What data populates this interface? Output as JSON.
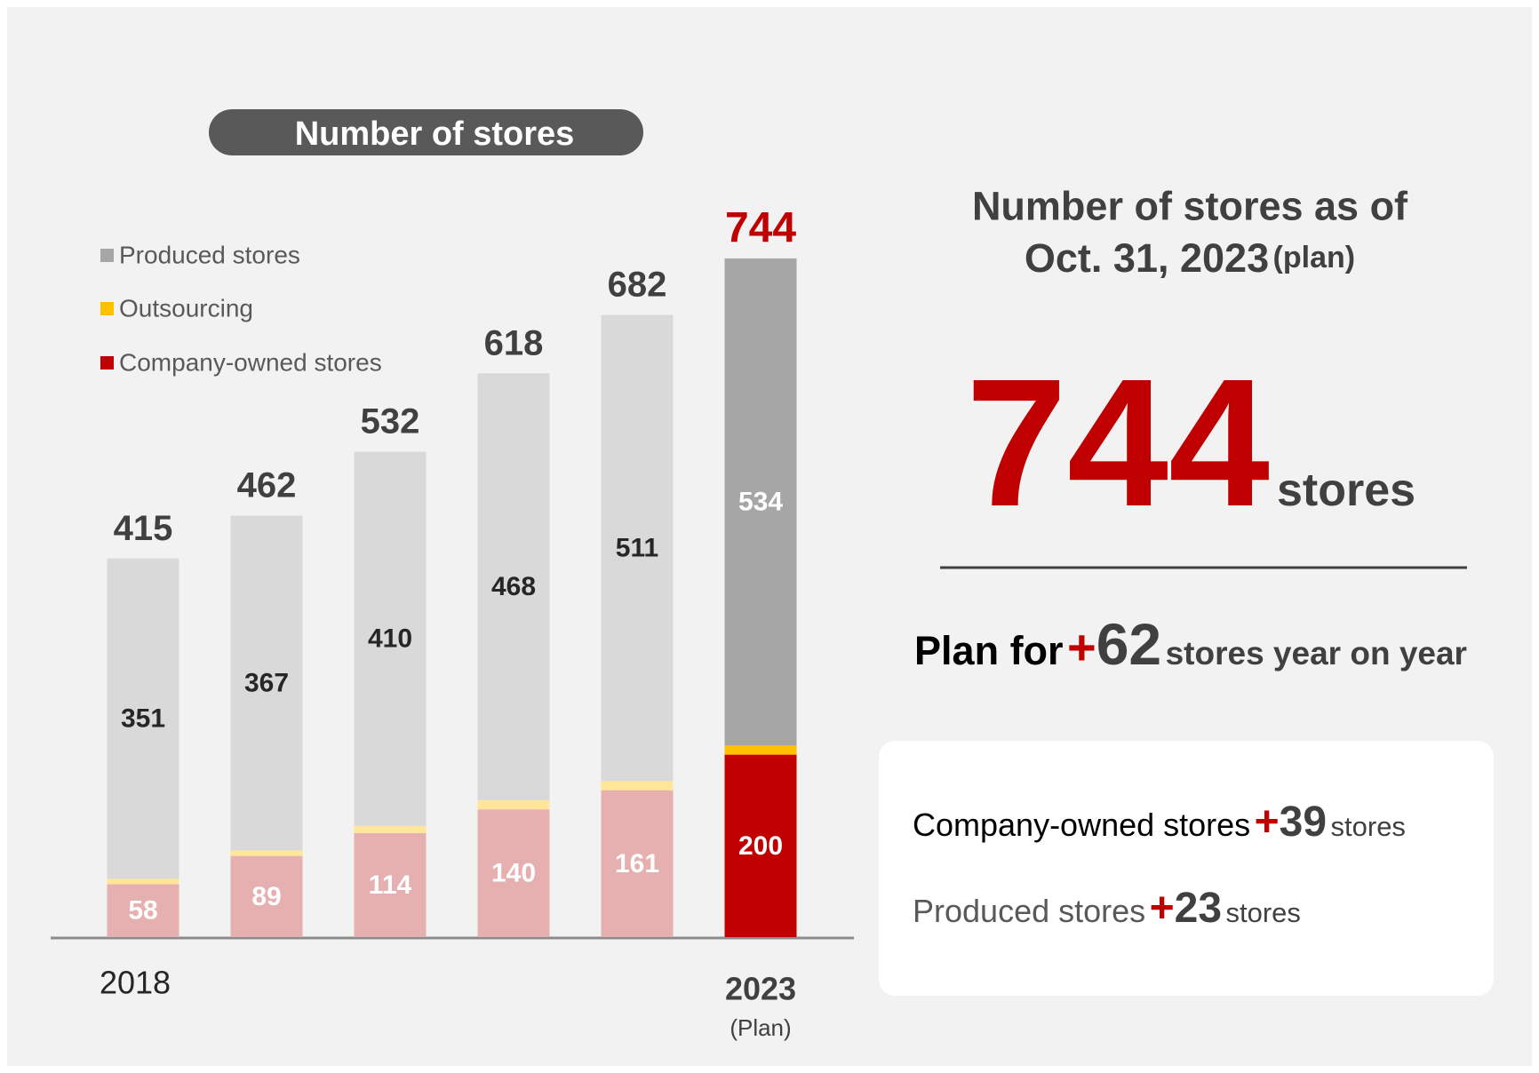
{
  "chart_data": {
    "type": "stacked_bar",
    "title": "Number of stores",
    "categories": [
      "2018",
      null,
      null,
      null,
      null,
      "2023"
    ],
    "category_notes": [
      null,
      null,
      null,
      null,
      null,
      "(Plan)"
    ],
    "series": [
      {
        "name": "Company-owned stores",
        "color": "#c00000",
        "colors": [
          "#e6b0b0",
          "#e6b0b0",
          "#e6b0b0",
          "#e6b0b0",
          "#e6b0b0",
          "#c00000"
        ],
        "values": [
          58,
          89,
          114,
          140,
          161,
          200
        ]
      },
      {
        "name": "Outsourcing",
        "color": "#ffc000",
        "colors": [
          "#ffe699",
          "#ffe699",
          "#ffe699",
          "#ffe699",
          "#ffe699",
          "#ffc000"
        ],
        "values": [
          6,
          6,
          8,
          10,
          10,
          10
        ]
      },
      {
        "name": "Produced stores",
        "color": "#a6a6a6",
        "colors": [
          "#d9d9d9",
          "#d9d9d9",
          "#d9d9d9",
          "#d9d9d9",
          "#d9d9d9",
          "#a6a6a6"
        ],
        "values": [
          351,
          367,
          410,
          468,
          511,
          534
        ]
      }
    ],
    "totals": [
      415,
      462,
      532,
      618,
      682,
      744
    ]
  },
  "summary": {
    "heading_line1": "Number of stores as of",
    "heading_line2": "Oct. 31, 2023",
    "heading_note": "(plan)",
    "total": 744,
    "total_unit": "stores",
    "change_prefix": "Plan for",
    "change_sign": "+",
    "change_value": 62,
    "change_suffix": "stores year on year",
    "breakdown": [
      {
        "label": "Company-owned stores",
        "sign": "+",
        "value": 39,
        "unit": "stores"
      },
      {
        "label": "Produced stores",
        "sign": "+",
        "value": 23,
        "unit": "stores"
      }
    ]
  }
}
